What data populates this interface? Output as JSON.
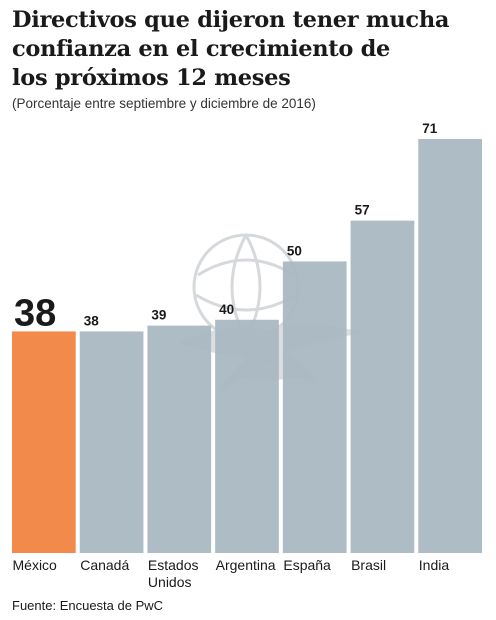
{
  "title_lines": [
    "Directivos que dijeron tener mucha",
    "confianza en el crecimiento de",
    "los próximos 12 meses"
  ],
  "subtitle": "(Porcentaje entre septiembre y diciembre de 2016)",
  "source": "Fuente: Encuesta de PwC",
  "colors": {
    "highlight": "#f28a4b",
    "bar": "#a9b8c1",
    "text": "#1a1a1a"
  },
  "watermark_icon": "eagle-seal-icon",
  "chart_data": {
    "type": "bar",
    "categories": [
      [
        "México"
      ],
      [
        "Canadá"
      ],
      [
        "Estados",
        "Unidos"
      ],
      [
        "Argentina"
      ],
      [
        "España"
      ],
      [
        "Brasil"
      ],
      [
        "India"
      ]
    ],
    "values": [
      38,
      38,
      39,
      40,
      50,
      57,
      71
    ],
    "value_labels": [
      "38",
      "38",
      "39",
      "40",
      "50",
      "57",
      "71"
    ],
    "highlight_index": 0,
    "ylim": [
      0,
      71
    ],
    "grid": false,
    "legend": "none"
  }
}
